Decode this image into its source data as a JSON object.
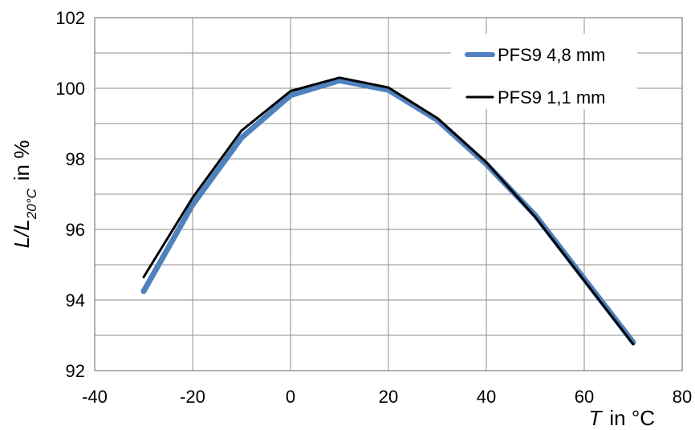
{
  "chart_data": {
    "type": "line",
    "xlabel": {
      "symbol": "T",
      "unit": "in °C"
    },
    "ylabel": {
      "symbol": "L/L",
      "subscript": "20°C",
      "unit": "in %"
    },
    "xlim": [
      -40,
      80
    ],
    "ylim": [
      92,
      102
    ],
    "xticks": [
      "-40",
      "-20",
      "0",
      "20",
      "40",
      "60",
      "80"
    ],
    "yticks": [
      "92",
      "94",
      "96",
      "98",
      "100",
      "102"
    ],
    "grid": true,
    "legend_position": "top-right",
    "series": [
      {
        "name": "PFS9 4,8 mm",
        "color": "#4f81bd",
        "x": [
          -30,
          -20,
          -10,
          0,
          10,
          20,
          30,
          40,
          50,
          60,
          70
        ],
        "y": [
          94.25,
          96.7,
          98.6,
          99.8,
          100.22,
          99.95,
          99.1,
          97.85,
          96.4,
          94.6,
          92.8
        ]
      },
      {
        "name": "PFS9 1,1 mm",
        "color": "#000000",
        "x": [
          -30,
          -20,
          -10,
          0,
          10,
          20,
          30,
          40,
          50,
          60,
          70
        ],
        "y": [
          94.65,
          96.9,
          98.8,
          99.92,
          100.3,
          100.02,
          99.15,
          97.9,
          96.35,
          94.55,
          92.75
        ]
      }
    ]
  }
}
